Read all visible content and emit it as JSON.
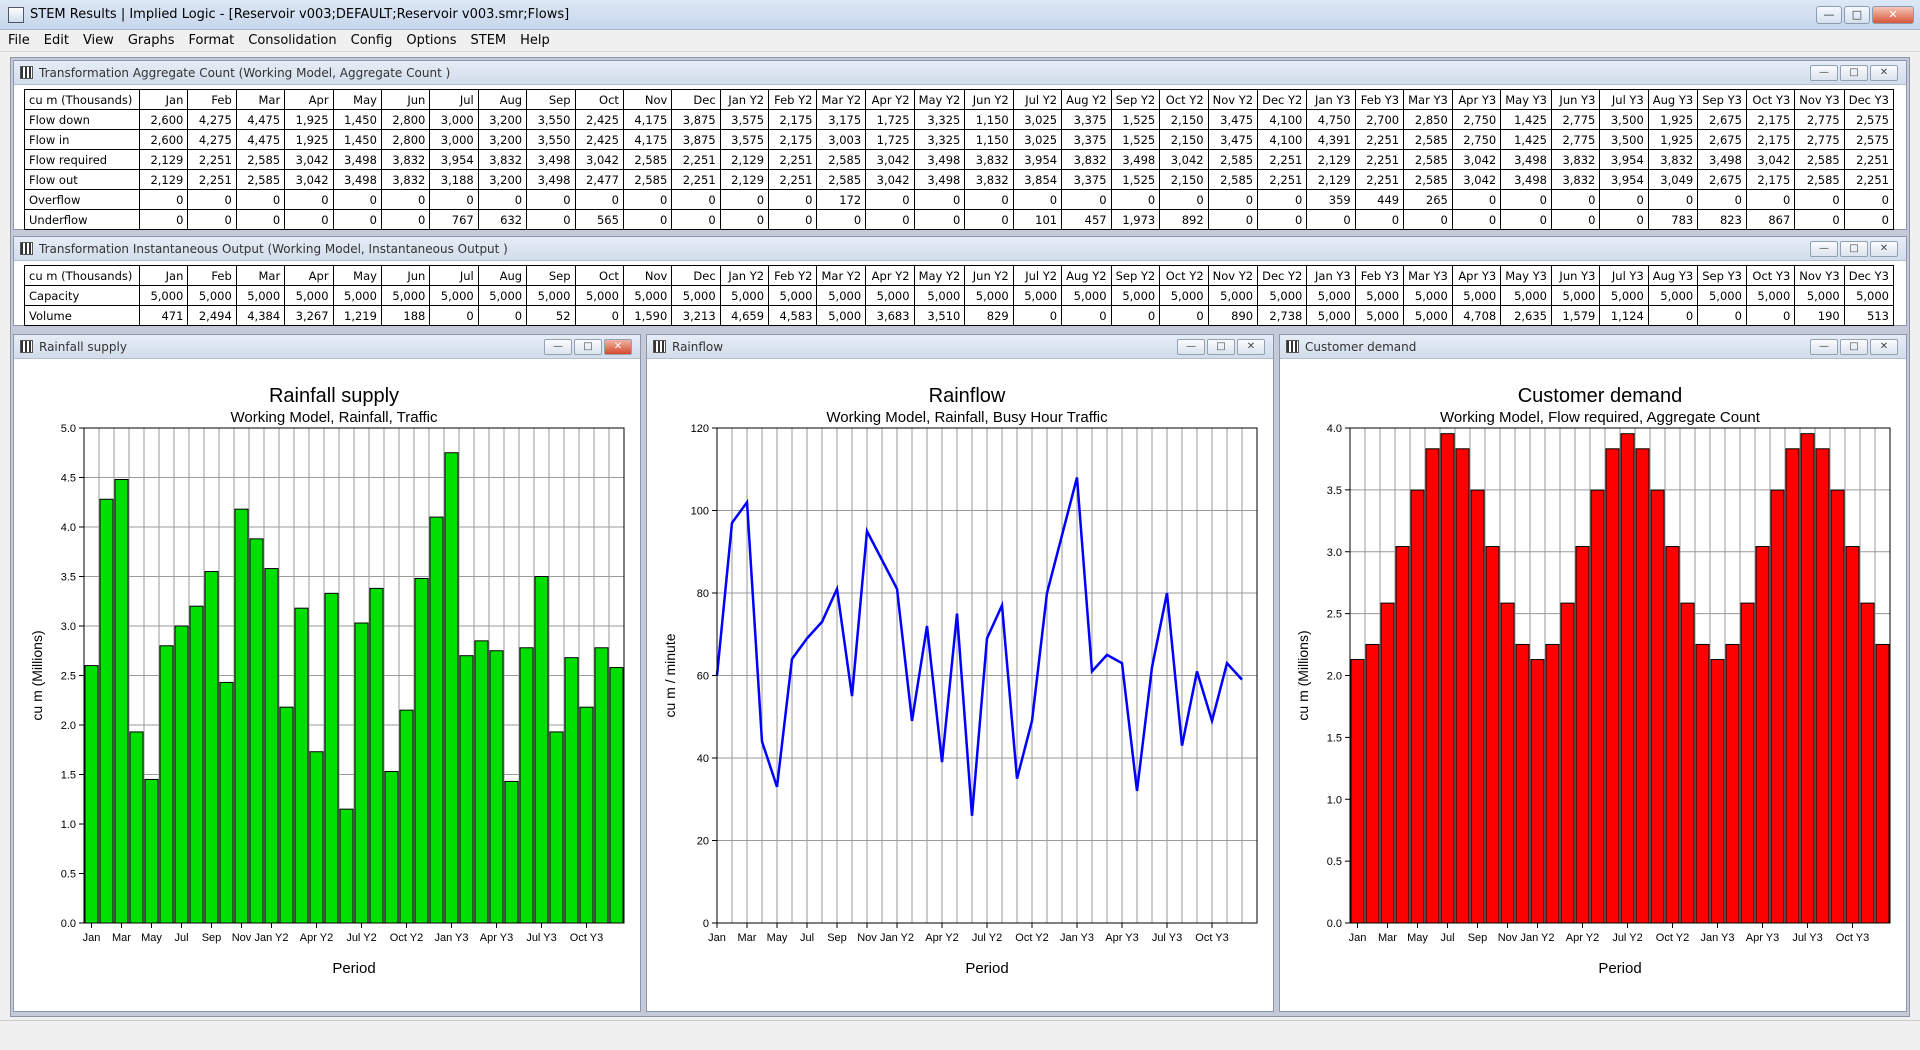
{
  "app": {
    "title": "STEM Results | Implied Logic - [Reservoir v003;DEFAULT;Reservoir v003.smr;Flows]"
  },
  "window_controls": {
    "minimize": "—",
    "maximize": "□",
    "close": "✕"
  },
  "menu": [
    "File",
    "Edit",
    "View",
    "Graphs",
    "Format",
    "Consolidation",
    "Config",
    "Options",
    "STEM",
    "Help"
  ],
  "months": [
    "Jan",
    "Feb",
    "Mar",
    "Apr",
    "May",
    "Jun",
    "Jul",
    "Aug",
    "Sep",
    "Oct",
    "Nov",
    "Dec",
    "Jan Y2",
    "Feb Y2",
    "Mar Y2",
    "Apr Y2",
    "May Y2",
    "Jun Y2",
    "Jul Y2",
    "Aug Y2",
    "Sep Y2",
    "Oct Y2",
    "Nov Y2",
    "Dec Y2",
    "Jan Y3",
    "Feb Y3",
    "Mar Y3",
    "Apr Y3",
    "May Y3",
    "Jun Y3",
    "Jul Y3",
    "Aug Y3",
    "Sep Y3",
    "Oct Y3",
    "Nov Y3",
    "Dec Y3"
  ],
  "table1": {
    "title": "Transformation Aggregate Count (Working Model, Aggregate Count )",
    "corner": "cu m  (Thousands)",
    "rows": [
      {
        "label": "Flow down",
        "values": [
          "2,600",
          "4,275",
          "4,475",
          "1,925",
          "1,450",
          "2,800",
          "3,000",
          "3,200",
          "3,550",
          "2,425",
          "4,175",
          "3,875",
          "3,575",
          "2,175",
          "3,175",
          "1,725",
          "3,325",
          "1,150",
          "3,025",
          "3,375",
          "1,525",
          "2,150",
          "3,475",
          "4,100",
          "4,750",
          "2,700",
          "2,850",
          "2,750",
          "1,425",
          "2,775",
          "3,500",
          "1,925",
          "2,675",
          "2,175",
          "2,775",
          "2,575"
        ]
      },
      {
        "label": "Flow in",
        "values": [
          "2,600",
          "4,275",
          "4,475",
          "1,925",
          "1,450",
          "2,800",
          "3,000",
          "3,200",
          "3,550",
          "2,425",
          "4,175",
          "3,875",
          "3,575",
          "2,175",
          "3,003",
          "1,725",
          "3,325",
          "1,150",
          "3,025",
          "3,375",
          "1,525",
          "2,150",
          "3,475",
          "4,100",
          "4,391",
          "2,251",
          "2,585",
          "2,750",
          "1,425",
          "2,775",
          "3,500",
          "1,925",
          "2,675",
          "2,175",
          "2,775",
          "2,575"
        ]
      },
      {
        "label": "Flow required",
        "values": [
          "2,129",
          "2,251",
          "2,585",
          "3,042",
          "3,498",
          "3,832",
          "3,954",
          "3,832",
          "3,498",
          "3,042",
          "2,585",
          "2,251",
          "2,129",
          "2,251",
          "2,585",
          "3,042",
          "3,498",
          "3,832",
          "3,954",
          "3,832",
          "3,498",
          "3,042",
          "2,585",
          "2,251",
          "2,129",
          "2,251",
          "2,585",
          "3,042",
          "3,498",
          "3,832",
          "3,954",
          "3,832",
          "3,498",
          "3,042",
          "2,585",
          "2,251"
        ]
      },
      {
        "label": "Flow out",
        "values": [
          "2,129",
          "2,251",
          "2,585",
          "3,042",
          "3,498",
          "3,832",
          "3,188",
          "3,200",
          "3,498",
          "2,477",
          "2,585",
          "2,251",
          "2,129",
          "2,251",
          "2,585",
          "3,042",
          "3,498",
          "3,832",
          "3,854",
          "3,375",
          "1,525",
          "2,150",
          "2,585",
          "2,251",
          "2,129",
          "2,251",
          "2,585",
          "3,042",
          "3,498",
          "3,832",
          "3,954",
          "3,049",
          "2,675",
          "2,175",
          "2,585",
          "2,251"
        ]
      },
      {
        "label": "Overflow",
        "values": [
          "0",
          "0",
          "0",
          "0",
          "0",
          "0",
          "0",
          "0",
          "0",
          "0",
          "0",
          "0",
          "0",
          "0",
          "172",
          "0",
          "0",
          "0",
          "0",
          "0",
          "0",
          "0",
          "0",
          "0",
          "359",
          "449",
          "265",
          "0",
          "0",
          "0",
          "0",
          "0",
          "0",
          "0",
          "0",
          "0"
        ]
      },
      {
        "label": "Underflow",
        "values": [
          "0",
          "0",
          "0",
          "0",
          "0",
          "0",
          "767",
          "632",
          "0",
          "565",
          "0",
          "0",
          "0",
          "0",
          "0",
          "0",
          "0",
          "0",
          "101",
          "457",
          "1,973",
          "892",
          "0",
          "0",
          "0",
          "0",
          "0",
          "0",
          "0",
          "0",
          "0",
          "783",
          "823",
          "867",
          "0",
          "0"
        ]
      }
    ]
  },
  "table2": {
    "title": "Transformation Instantaneous Output (Working Model, Instantaneous Output )",
    "corner": "cu m  (Thousands)",
    "rows": [
      {
        "label": "Capacity",
        "values": [
          "5,000",
          "5,000",
          "5,000",
          "5,000",
          "5,000",
          "5,000",
          "5,000",
          "5,000",
          "5,000",
          "5,000",
          "5,000",
          "5,000",
          "5,000",
          "5,000",
          "5,000",
          "5,000",
          "5,000",
          "5,000",
          "5,000",
          "5,000",
          "5,000",
          "5,000",
          "5,000",
          "5,000",
          "5,000",
          "5,000",
          "5,000",
          "5,000",
          "5,000",
          "5,000",
          "5,000",
          "5,000",
          "5,000",
          "5,000",
          "5,000",
          "5,000"
        ]
      },
      {
        "label": "Volume",
        "values": [
          "471",
          "2,494",
          "4,384",
          "3,267",
          "1,219",
          "188",
          "0",
          "0",
          "52",
          "0",
          "1,590",
          "3,213",
          "4,659",
          "4,583",
          "5,000",
          "3,683",
          "3,510",
          "829",
          "0",
          "0",
          "0",
          "0",
          "890",
          "2,738",
          "5,000",
          "5,000",
          "5,000",
          "4,708",
          "2,635",
          "1,579",
          "1,124",
          "0",
          "0",
          "0",
          "190",
          "513"
        ]
      }
    ]
  },
  "chart_data": [
    {
      "type": "bar",
      "window_title": "Rainfall supply",
      "title": "Rainfall supply",
      "subtitle": "Working Model, Rainfall, Traffic",
      "xlabel": "Period",
      "ylabel": "cu m  (Millions)",
      "ylim": [
        0,
        5
      ],
      "yticks": [
        "0.0",
        "0.5",
        "1.0",
        "1.5",
        "2.0",
        "2.5",
        "3.0",
        "3.5",
        "4.0",
        "4.5",
        "5.0"
      ],
      "color": "#00e000",
      "grid": true,
      "xticklabels": [
        "Jan",
        "Mar",
        "May",
        "Jul",
        "Sep",
        "Nov",
        "Jan Y2",
        "Apr Y2",
        "Jul Y2",
        "Oct Y2",
        "Jan Y3",
        "Apr Y3",
        "Jul Y3",
        "Oct Y3"
      ],
      "values": [
        2.6,
        4.28,
        4.48,
        1.93,
        1.45,
        2.8,
        3.0,
        3.2,
        3.55,
        2.43,
        4.18,
        3.88,
        3.58,
        2.18,
        3.18,
        1.73,
        3.33,
        1.15,
        3.03,
        3.38,
        1.53,
        2.15,
        3.48,
        4.1,
        4.75,
        2.7,
        2.85,
        2.75,
        1.43,
        2.78,
        3.5,
        1.93,
        2.68,
        2.18,
        2.78,
        2.58
      ]
    },
    {
      "type": "line",
      "window_title": "Rainflow",
      "title": "Rainflow",
      "subtitle": "Working Model, Rainfall, Busy Hour Traffic",
      "xlabel": "Period",
      "ylabel": "cu m / minute",
      "ylim": [
        0,
        120
      ],
      "yticks": [
        "0",
        "20",
        "40",
        "60",
        "80",
        "100",
        "120"
      ],
      "color": "#0000ff",
      "grid": true,
      "xticklabels": [
        "Jan",
        "Mar",
        "May",
        "Jul",
        "Sep",
        "Nov",
        "Jan Y2",
        "Apr Y2",
        "Jul Y2",
        "Oct Y2",
        "Jan Y3",
        "Apr Y3",
        "Jul Y3",
        "Oct Y3"
      ],
      "values": [
        60,
        97,
        102,
        44,
        33,
        64,
        69,
        73,
        81,
        55,
        95,
        88,
        81,
        49,
        72,
        39,
        75,
        26,
        69,
        77,
        35,
        49,
        80,
        94,
        108,
        61,
        65,
        63,
        32,
        62,
        80,
        43,
        61,
        49,
        63,
        59
      ]
    },
    {
      "type": "bar",
      "window_title": "Customer demand",
      "title": "Customer demand",
      "subtitle": "Working Model, Flow required, Aggregate Count",
      "xlabel": "Period",
      "ylabel": "cu m  (Millions)",
      "ylim": [
        0,
        4
      ],
      "yticks": [
        "0.0",
        "0.5",
        "1.0",
        "1.5",
        "2.0",
        "2.5",
        "3.0",
        "3.5",
        "4.0"
      ],
      "color": "#ff0000",
      "grid": true,
      "xticklabels": [
        "Jan",
        "Mar",
        "May",
        "Jul",
        "Sep",
        "Nov",
        "Jan Y2",
        "Apr Y2",
        "Jul Y2",
        "Oct Y2",
        "Jan Y3",
        "Apr Y3",
        "Jul Y3",
        "Oct Y3"
      ],
      "values": [
        2.129,
        2.251,
        2.585,
        3.042,
        3.498,
        3.832,
        3.954,
        3.832,
        3.498,
        3.042,
        2.585,
        2.251,
        2.129,
        2.251,
        2.585,
        3.042,
        3.498,
        3.832,
        3.954,
        3.832,
        3.498,
        3.042,
        2.585,
        2.251,
        2.129,
        2.251,
        2.585,
        3.042,
        3.498,
        3.832,
        3.954,
        3.832,
        3.498,
        3.042,
        2.585,
        2.251
      ]
    }
  ]
}
